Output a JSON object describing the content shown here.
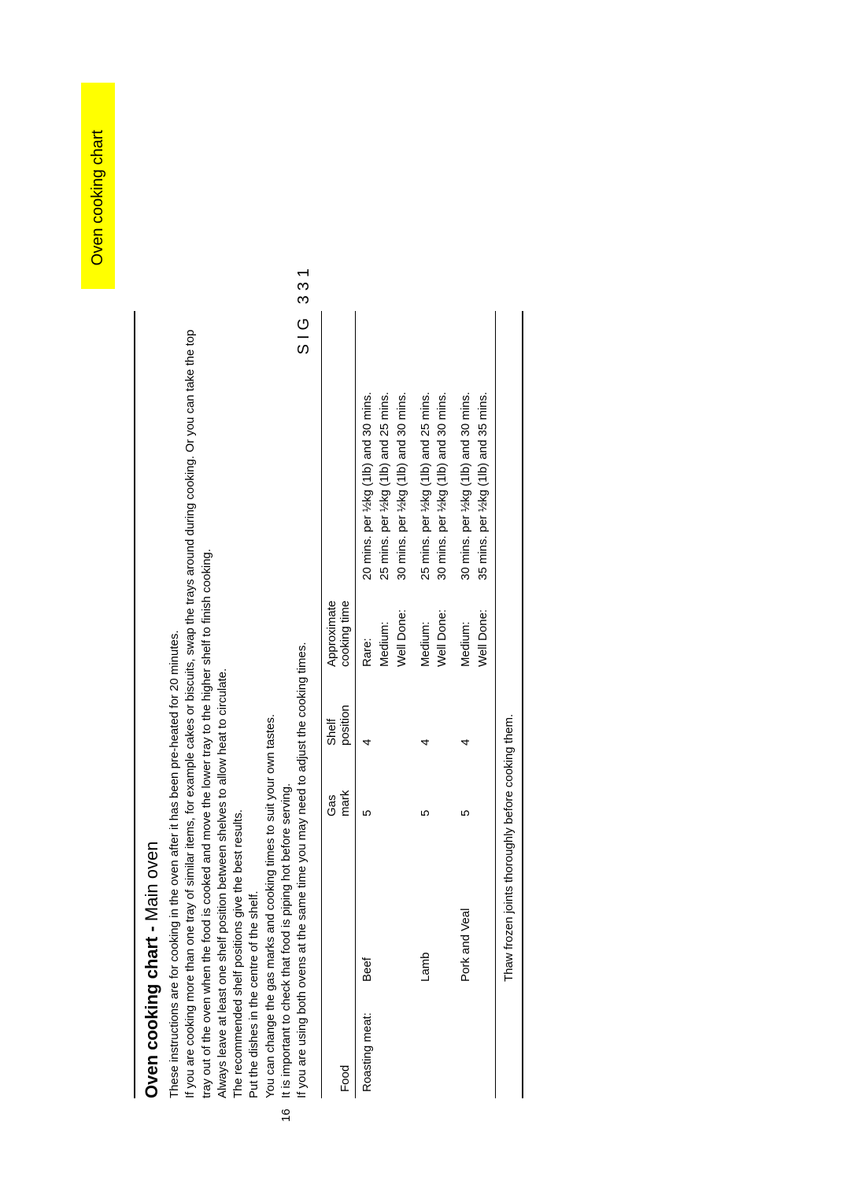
{
  "tab_label": "Oven cooking chart",
  "heading_bold": "Oven cooking chart - ",
  "heading_sub": "Main oven",
  "intro_lines": [
    "These instructions are for cooking in the oven after it has been pre-heated for 20 minutes.",
    "If you are cooking more than one tray of similar items, for example cakes or biscuits, swap the trays around during cooking.  Or you can take the top tray out of the oven when the food is cooked and move the lower tray to the higher shelf to finish cooking.",
    "Always leave at least one shelf position between shelves to allow heat to circulate.",
    "The recommended shelf positions give the best results.",
    "Put the dishes in the centre of the shelf.",
    "You can change the gas marks and cooking times to suit your own tastes.",
    "It is important to check that food is piping hot before serving.",
    "If you are using both ovens at the same time you may need to adjust the cooking times."
  ],
  "sig_label": "SIG 331",
  "page_number": "16",
  "table": {
    "headers": {
      "food": "Food",
      "gas": "Gas mark",
      "shelf": "Shelf position",
      "time": "Approximate cooking time"
    },
    "rows": [
      {
        "food": "Roasting meat:",
        "item": "Beef",
        "gas": "5",
        "shelf": "4",
        "times": [
          {
            "label": "Rare:",
            "value": "20 mins. per ½kg (1lb) and 30 mins."
          },
          {
            "label": "Medium:",
            "value": "25 mins. per ½kg (1lb) and 25 mins."
          },
          {
            "label": "Well Done:",
            "value": "30 mins. per ½kg (1lb) and 30 mins."
          }
        ]
      },
      {
        "food": "",
        "item": "Lamb",
        "gas": "5",
        "shelf": "4",
        "times": [
          {
            "label": "Medium:",
            "value": "25 mins. per ½kg (1lb) and 25 mins."
          },
          {
            "label": "Well Done:",
            "value": "30 mins. per ½kg (1lb) and 30 mins."
          }
        ]
      },
      {
        "food": "",
        "item": "Pork and Veal",
        "gas": "5",
        "shelf": "4",
        "times": [
          {
            "label": "Medium:",
            "value": "30 mins. per ½kg (1lb) and 30 mins."
          },
          {
            "label": "Well Done:",
            "value": "35 mins. per ½kg (1lb) and 35 mins."
          }
        ]
      }
    ],
    "footer": "Thaw frozen joints thoroughly before cooking them."
  }
}
